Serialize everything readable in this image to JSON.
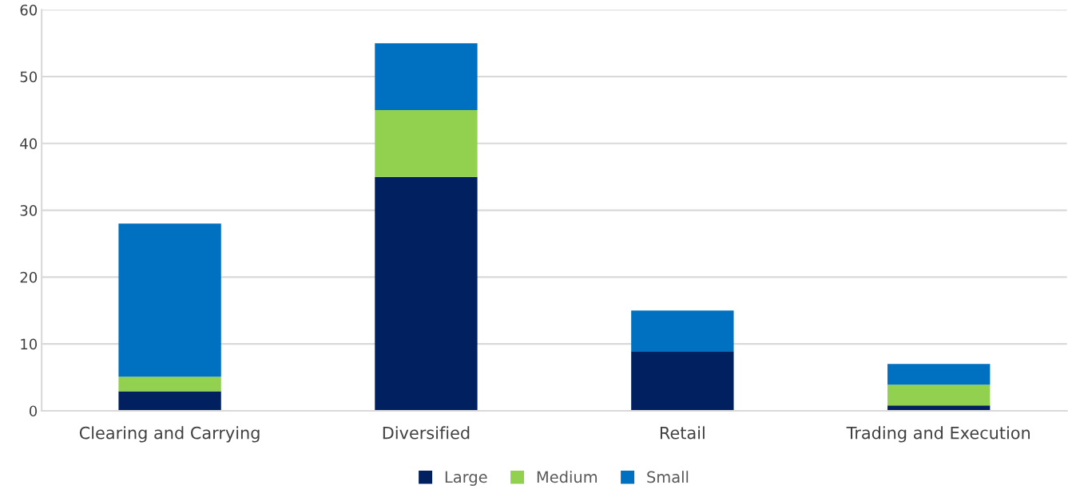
{
  "chart_data": {
    "type": "bar",
    "stacked": true,
    "categories": [
      "Clearing and Carrying",
      "Diversified",
      "Retail",
      "Trading and Execution"
    ],
    "series": [
      {
        "name": "Large",
        "color": "#002060",
        "values": [
          2.9,
          35,
          8.9,
          0.8
        ]
      },
      {
        "name": "Medium",
        "color": "#92d050",
        "values": [
          2.2,
          10,
          null,
          3.1
        ]
      },
      {
        "name": "Small",
        "color": "#0070c0",
        "values": [
          22.9,
          10,
          6.1,
          3.1
        ]
      }
    ],
    "ylim": [
      0,
      60
    ],
    "yticks": [
      0,
      10,
      20,
      30,
      40,
      50,
      60
    ],
    "grid": "y",
    "legend": "bottom"
  }
}
